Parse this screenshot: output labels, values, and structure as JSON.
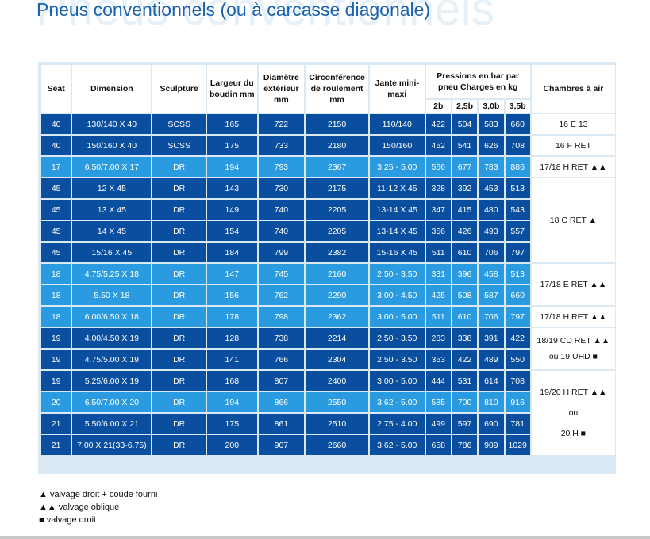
{
  "title": "Pneus conventionnels (ou à carcasse diagonale)",
  "title_watermark": "Pneus conventionnels",
  "headers": {
    "seat": "Seat",
    "dimension": "Dimension",
    "sculpture": "Sculpture",
    "largeur": "Largeur du boudin mm",
    "diametre": "Diamètre extérieur mm",
    "circonference": "Circonférence de roulement mm",
    "jante": "Jante mini-maxi",
    "pressions": "Pressions en bar par pneu Charges en kg",
    "p2b": "2b",
    "p25b": "2,5b",
    "p30b": "3,0b",
    "p35b": "3,5b",
    "chambres": "Chambres à air"
  },
  "rows": [
    {
      "seat": "40",
      "dimension": "130/140 X 40",
      "sculpture": "SCSS",
      "largeur": "165",
      "diametre": "722",
      "circonference": "2150",
      "jante": "110/140",
      "p2b": "422",
      "p25b": "504",
      "p30b": "583",
      "p35b": "660",
      "shade": "dark"
    },
    {
      "seat": "40",
      "dimension": "150/160 X 40",
      "sculpture": "SCSS",
      "largeur": "175",
      "diametre": "733",
      "circonference": "2180",
      "jante": "150/160",
      "p2b": "452",
      "p25b": "541",
      "p30b": "626",
      "p35b": "708",
      "shade": "dark"
    },
    {
      "seat": "17",
      "dimension": "6.50/7.00 X 17",
      "sculpture": "DR",
      "largeur": "194",
      "diametre": "793",
      "circonference": "2367",
      "jante": "3.25 - 5.00",
      "p2b": "566",
      "p25b": "677",
      "p30b": "783",
      "p35b": "886",
      "shade": "light"
    },
    {
      "seat": "45",
      "dimension": "12 X 45",
      "sculpture": "DR",
      "largeur": "143",
      "diametre": "730",
      "circonference": "2175",
      "jante": "11-12 X 45",
      "p2b": "328",
      "p25b": "392",
      "p30b": "453",
      "p35b": "513",
      "shade": "dark"
    },
    {
      "seat": "45",
      "dimension": "13 X 45",
      "sculpture": "DR",
      "largeur": "149",
      "diametre": "740",
      "circonference": "2205",
      "jante": "13-14 X 45",
      "p2b": "347",
      "p25b": "415",
      "p30b": "480",
      "p35b": "543",
      "shade": "dark"
    },
    {
      "seat": "45",
      "dimension": "14 X 45",
      "sculpture": "DR",
      "largeur": "154",
      "diametre": "740",
      "circonference": "2205",
      "jante": "13-14 X 45",
      "p2b": "356",
      "p25b": "426",
      "p30b": "493",
      "p35b": "557",
      "shade": "dark"
    },
    {
      "seat": "45",
      "dimension": "15/16 X 45",
      "sculpture": "DR",
      "largeur": "184",
      "diametre": "799",
      "circonference": "2382",
      "jante": "15-16 X 45",
      "p2b": "511",
      "p25b": "610",
      "p30b": "706",
      "p35b": "797",
      "shade": "dark"
    },
    {
      "seat": "18",
      "dimension": "4.75/5.25 X 18",
      "sculpture": "DR",
      "largeur": "147",
      "diametre": "745",
      "circonference": "2160",
      "jante": "2.50 - 3.50",
      "p2b": "331",
      "p25b": "396",
      "p30b": "458",
      "p35b": "513",
      "shade": "light"
    },
    {
      "seat": "18",
      "dimension": "5.50 X 18",
      "sculpture": "DR",
      "largeur": "156",
      "diametre": "762",
      "circonference": "2290",
      "jante": "3.00 - 4.50",
      "p2b": "425",
      "p25b": "508",
      "p30b": "587",
      "p35b": "660",
      "shade": "light"
    },
    {
      "seat": "18",
      "dimension": "6.00/6.50 X 18",
      "sculpture": "DR",
      "largeur": "178",
      "diametre": "798",
      "circonference": "2362",
      "jante": "3.00 - 5.00",
      "p2b": "511",
      "p25b": "610",
      "p30b": "706",
      "p35b": "797",
      "shade": "light"
    },
    {
      "seat": "19",
      "dimension": "4.00/4.50 X 19",
      "sculpture": "DR",
      "largeur": "128",
      "diametre": "738",
      "circonference": "2214",
      "jante": "2.50 - 3.50",
      "p2b": "283",
      "p25b": "338",
      "p30b": "391",
      "p35b": "422",
      "shade": "dark"
    },
    {
      "seat": "19",
      "dimension": "4.75/5.00 X 19",
      "sculpture": "DR",
      "largeur": "141",
      "diametre": "766",
      "circonference": "2304",
      "jante": "2.50 - 3.50",
      "p2b": "353",
      "p25b": "422",
      "p30b": "489",
      "p35b": "550",
      "shade": "dark"
    },
    {
      "seat": "19",
      "dimension": "5.25/6.00 X 19",
      "sculpture": "DR",
      "largeur": "168",
      "diametre": "807",
      "circonference": "2400",
      "jante": "3.00 - 5.00",
      "p2b": "444",
      "p25b": "531",
      "p30b": "614",
      "p35b": "708",
      "shade": "dark"
    },
    {
      "seat": "20",
      "dimension": "6.50/7.00 X 20",
      "sculpture": "DR",
      "largeur": "194",
      "diametre": "866",
      "circonference": "2550",
      "jante": "3.62 - 5.00",
      "p2b": "585",
      "p25b": "700",
      "p30b": "810",
      "p35b": "916",
      "shade": "light"
    },
    {
      "seat": "21",
      "dimension": "5.50/6.00 X 21",
      "sculpture": "DR",
      "largeur": "175",
      "diametre": "861",
      "circonference": "2510",
      "jante": "2.75 - 4.00",
      "p2b": "499",
      "p25b": "597",
      "p30b": "690",
      "p35b": "781",
      "shade": "dark"
    },
    {
      "seat": "21",
      "dimension": "7.00 X 21(33-6.75)",
      "sculpture": "DR",
      "largeur": "200",
      "diametre": "907",
      "circonference": "2660",
      "jante": "3.62 - 5.00",
      "p2b": "658",
      "p25b": "786",
      "p30b": "909",
      "p35b": "1029",
      "shade": "dark"
    }
  ],
  "chambres": [
    {
      "start": 0,
      "span": 1,
      "lines": [
        "16 E 13"
      ]
    },
    {
      "start": 1,
      "span": 1,
      "lines": [
        "16 F RET"
      ]
    },
    {
      "start": 2,
      "span": 1,
      "lines": [
        "17/18 H RET ▲▲"
      ]
    },
    {
      "start": 3,
      "span": 4,
      "lines": [
        "18 C RET ▲"
      ]
    },
    {
      "start": 7,
      "span": 2,
      "lines": [
        "17/18 E RET ▲▲"
      ]
    },
    {
      "start": 9,
      "span": 1,
      "lines": [
        "17/18 H RET ▲▲"
      ]
    },
    {
      "start": 10,
      "span": 2,
      "lines": [
        "18/19 CD RET ▲▲",
        "ou 19 UHD ■"
      ]
    },
    {
      "start": 12,
      "span": 4,
      "lines": [
        "19/20 H RET ▲▲",
        "ou",
        "20 H ■"
      ]
    }
  ],
  "legend": [
    "▲ valvage droit + coude fourni",
    "▲▲ valvage oblique",
    "■ valvage droit"
  ]
}
